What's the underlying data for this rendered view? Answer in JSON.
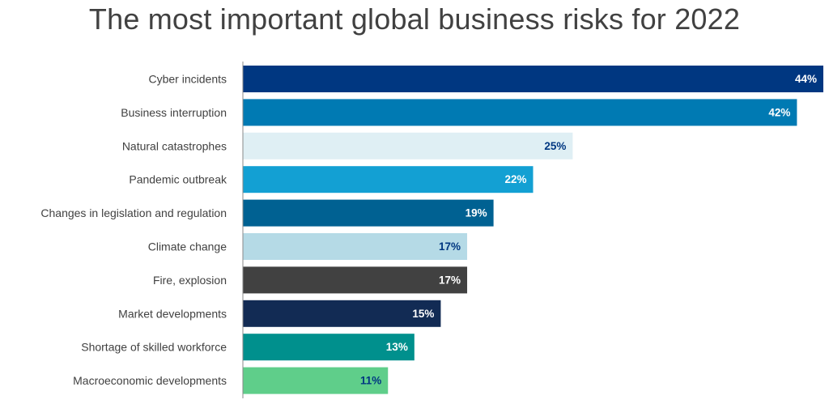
{
  "chart_data": {
    "type": "bar",
    "orientation": "horizontal",
    "title": "The most important global business risks for 2022",
    "xlabel": "",
    "ylabel": "",
    "xlim": [
      0,
      44
    ],
    "grid": false,
    "legend": "none",
    "categories": [
      "Cyber incidents",
      "Business interruption",
      "Natural catastrophes",
      "Pandemic outbreak",
      "Changes in legislation and regulation",
      "Climate change",
      "Fire, explosion",
      "Market developments",
      "Shortage of skilled workforce",
      "Macroeconomic developments"
    ],
    "values": [
      44,
      42,
      25,
      22,
      19,
      17,
      17,
      15,
      13,
      11
    ],
    "value_labels": [
      "44%",
      "42%",
      "25%",
      "22%",
      "19%",
      "17%",
      "17%",
      "15%",
      "13%",
      "11%"
    ],
    "bar_colors": [
      "#003781",
      "#007AB3",
      "#DFEFF4",
      "#13A0D3",
      "#006192",
      "#B5DAE6",
      "#414141",
      "#122B54",
      "#00908D",
      "#5FCE8A"
    ],
    "label_colors": [
      "#FFFFFF",
      "#FFFFFF",
      "#003781",
      "#FFFFFF",
      "#FFFFFF",
      "#003781",
      "#FFFFFF",
      "#FFFFFF",
      "#FFFFFF",
      "#003781"
    ],
    "axis_color": "#8A8A8A",
    "text_color": "#414141"
  }
}
